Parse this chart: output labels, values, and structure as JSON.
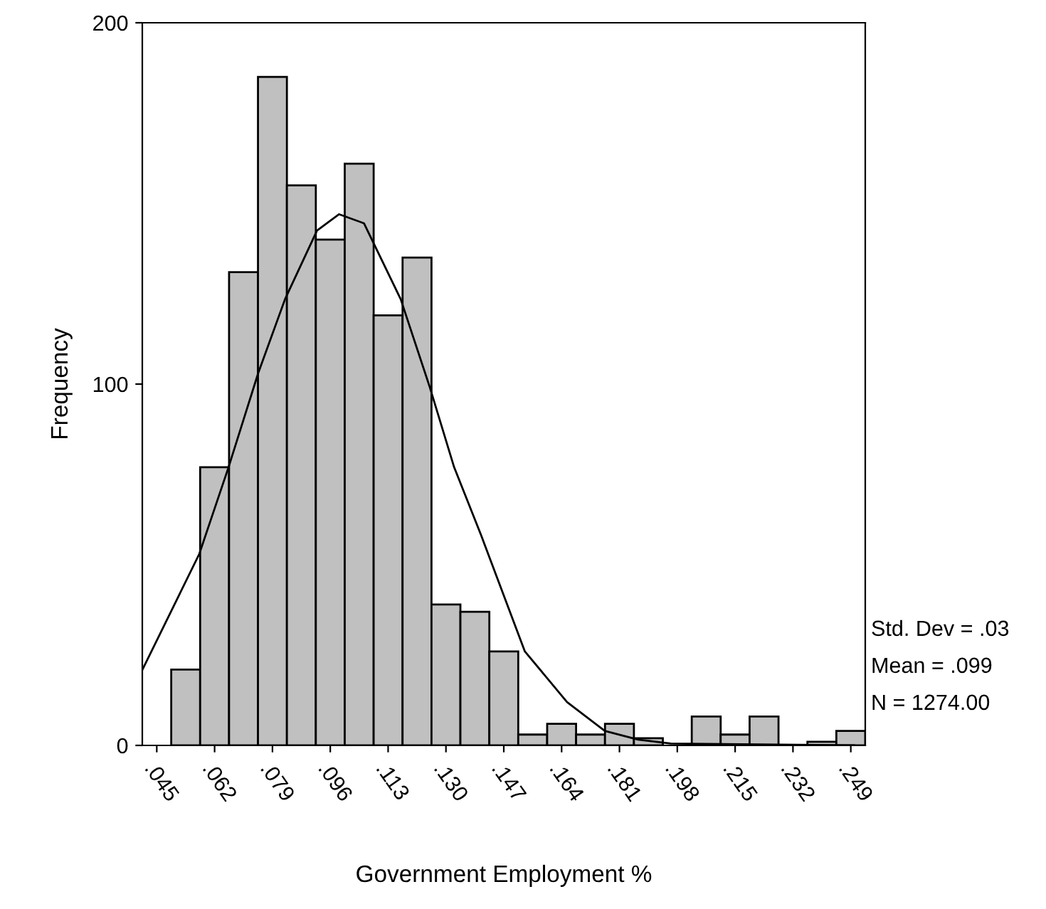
{
  "chart_data": {
    "type": "histogram",
    "xlabel": "Government Employment %",
    "ylabel": "Frequency",
    "bins": [
      0.04075,
      0.04925,
      0.05775,
      0.06625,
      0.07475,
      0.08325,
      0.09175,
      0.10025,
      0.10875,
      0.11725,
      0.12575,
      0.13425,
      0.14275,
      0.15125,
      0.15975,
      0.16825,
      0.17675,
      0.18525,
      0.19375,
      0.20225,
      0.21075,
      0.21925,
      0.22775,
      0.23625,
      0.24475,
      0.25325
    ],
    "values": [
      0,
      21,
      77,
      131,
      185,
      155,
      140,
      161,
      119,
      135,
      39,
      37,
      26,
      3,
      6,
      3,
      6,
      2,
      null,
      8,
      3,
      8,
      0,
      1,
      4
    ],
    "color": "#c0c0c0",
    "series": [
      {
        "type": "line",
        "color": "#000000",
        "x": [
          0.0408,
          0.0575,
          0.0661,
          0.0748,
          0.0827,
          0.0921,
          0.0986,
          0.1059,
          0.1167,
          0.1253,
          0.1324,
          0.1404,
          0.1532,
          0.1656,
          0.1767,
          0.1865,
          0.1961,
          0.25
        ],
        "values": [
          21,
          53,
          77,
          103,
          123.5,
          142.5,
          147,
          144.5,
          123.5,
          99,
          77,
          58,
          26,
          12,
          4,
          1.6,
          0.5,
          0
        ]
      }
    ],
    "xlim": [
      0.04075,
      0.25325
    ],
    "xticks": [
      {
        "value": 0.045,
        "label": ".045"
      },
      {
        "value": 0.062,
        "label": ".062"
      },
      {
        "value": 0.079,
        "label": ".079"
      },
      {
        "value": 0.096,
        "label": ".096"
      },
      {
        "value": 0.113,
        "label": ".113"
      },
      {
        "value": 0.13,
        "label": ".130"
      },
      {
        "value": 0.147,
        "label": ".147"
      },
      {
        "value": 0.164,
        "label": ".164"
      },
      {
        "value": 0.181,
        "label": ".181"
      },
      {
        "value": 0.198,
        "label": ".198"
      },
      {
        "value": 0.215,
        "label": ".215"
      },
      {
        "value": 0.232,
        "label": ".232"
      },
      {
        "value": 0.249,
        "label": ".249"
      }
    ],
    "ylim": [
      0,
      200
    ],
    "yticks": [
      0,
      100,
      200
    ],
    "annotations": [
      "Std. Dev = .03",
      "Mean = .099",
      "N = 1274.00"
    ]
  }
}
